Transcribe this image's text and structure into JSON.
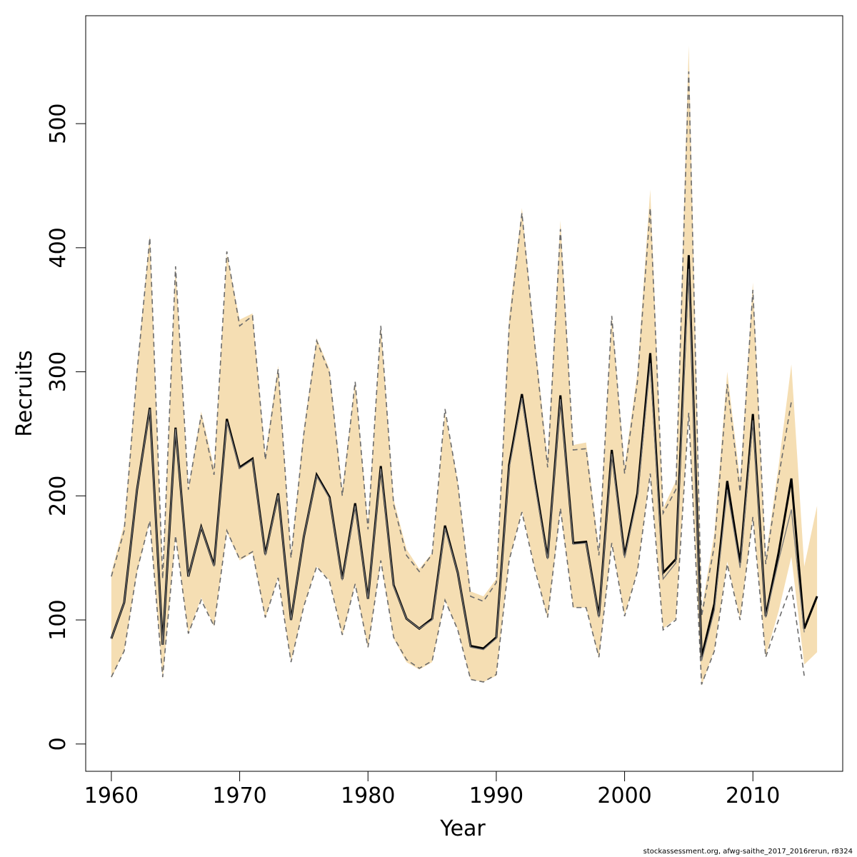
{
  "chart_data": {
    "type": "line",
    "title": "",
    "xlabel": "Year",
    "ylabel": "Recruits",
    "xlim": [
      1958,
      2017
    ],
    "ylim": [
      -22,
      587
    ],
    "xticks": [
      1960,
      1970,
      1980,
      1990,
      2000,
      2010
    ],
    "yticks": [
      0,
      100,
      200,
      300,
      400,
      500
    ],
    "grid": false,
    "legend": "none",
    "colors": {
      "band": "#f5deb3",
      "estimate": "#000000",
      "previous": "#777777",
      "bounds": "#6b6b6b"
    },
    "x": [
      1960,
      1961,
      1962,
      1963,
      1964,
      1965,
      1966,
      1967,
      1968,
      1969,
      1970,
      1971,
      1972,
      1973,
      1974,
      1975,
      1976,
      1977,
      1978,
      1979,
      1980,
      1981,
      1982,
      1983,
      1984,
      1985,
      1986,
      1987,
      1988,
      1989,
      1990,
      1991,
      1992,
      1993,
      1994,
      1995,
      1996,
      1997,
      1998,
      1999,
      2000,
      2001,
      2002,
      2003,
      2004,
      2005,
      2006,
      2007,
      2008,
      2009,
      2010,
      2011,
      2012,
      2013,
      2014,
      2015
    ],
    "series": [
      {
        "role": "estimate",
        "values": [
          85,
          114,
          205,
          271,
          80,
          255,
          135,
          175,
          144,
          262,
          223,
          230,
          153,
          202,
          100,
          167,
          217,
          199,
          133,
          194,
          117,
          224,
          128,
          101,
          93,
          101,
          176,
          138,
          79,
          77,
          86,
          225,
          282,
          213,
          150,
          281,
          162,
          163,
          103,
          237,
          152,
          202,
          315,
          138,
          149,
          394,
          70,
          113,
          212,
          146,
          266,
          103,
          154,
          214,
          93,
          119
        ]
      },
      {
        "role": "band_upper",
        "values": [
          138,
          177,
          303,
          410,
          137,
          385,
          206,
          268,
          223,
          395,
          342,
          347,
          233,
          305,
          153,
          254,
          327,
          302,
          205,
          292,
          177,
          338,
          197,
          157,
          141,
          154,
          267,
          212,
          123,
          119,
          133,
          344,
          432,
          326,
          230,
          422,
          241,
          243,
          157,
          346,
          224,
          299,
          447,
          190,
          212,
          563,
          108,
          170,
          300,
          212,
          372,
          150,
          224,
          306,
          143,
          192
        ]
      },
      {
        "role": "band_lower",
        "values": [
          53,
          75,
          138,
          180,
          52,
          168,
          89,
          118,
          95,
          171,
          148,
          154,
          101,
          135,
          66,
          111,
          143,
          132,
          87,
          129,
          77,
          147,
          85,
          66,
          60,
          66,
          116,
          92,
          52,
          50,
          55,
          148,
          188,
          142,
          101,
          188,
          110,
          110,
          69,
          162,
          104,
          139,
          219,
          93,
          101,
          270,
          47,
          76,
          147,
          101,
          183,
          71,
          107,
          151,
          64,
          74
        ]
      },
      {
        "role": "previous_estimate",
        "values": [
          85,
          114,
          205,
          270,
          80,
          254,
          135,
          175,
          143,
          260,
          222,
          229,
          152,
          201,
          100,
          167,
          216,
          198,
          132,
          192,
          117,
          222,
          127,
          101,
          93,
          100,
          174,
          138,
          78,
          76,
          85,
          222,
          279,
          210,
          149,
          278,
          161,
          162,
          102,
          234,
          150,
          199,
          307,
          133,
          146,
          383,
          67,
          108,
          205,
          142,
          261,
          102,
          148,
          189,
          90,
          null
        ]
      },
      {
        "role": "previous_upper",
        "values": [
          135,
          172,
          300,
          408,
          133,
          385,
          205,
          265,
          217,
          397,
          337,
          345,
          229,
          302,
          150,
          250,
          325,
          299,
          200,
          292,
          173,
          337,
          193,
          152,
          139,
          153,
          270,
          210,
          119,
          115,
          130,
          336,
          428,
          322,
          223,
          415,
          237,
          238,
          152,
          345,
          218,
          292,
          432,
          186,
          205,
          542,
          103,
          160,
          290,
          203,
          366,
          145,
          215,
          276,
          null,
          null
        ]
      },
      {
        "role": "previous_lower",
        "values": [
          54,
          75,
          140,
          180,
          54,
          168,
          89,
          116,
          95,
          172,
          149,
          155,
          102,
          134,
          66,
          111,
          143,
          131,
          88,
          129,
          78,
          148,
          86,
          68,
          61,
          67,
          116,
          92,
          52,
          50,
          56,
          148,
          187,
          141,
          102,
          190,
          110,
          110,
          70,
          162,
          103,
          139,
          218,
          92,
          100,
          267,
          48,
          75,
          145,
          100,
          183,
          70,
          100,
          128,
          55,
          null
        ]
      }
    ]
  },
  "footer": {
    "text": "stockassessment.org, afwg-saithe_2017_2016rerun, r8324"
  }
}
